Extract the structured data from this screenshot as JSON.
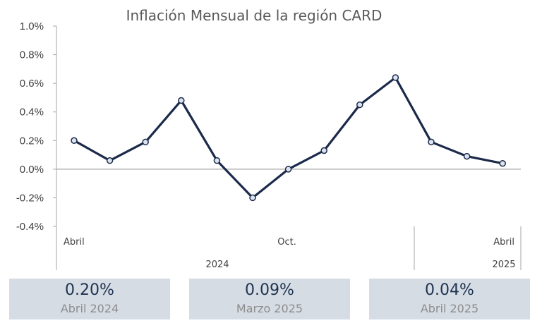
{
  "chart_data": {
    "type": "line",
    "title": "Inflación Mensual de la región CARD",
    "y_unit": "%",
    "ylim": [
      -0.4,
      1.0
    ],
    "yticks": [
      1.0,
      0.8,
      0.6,
      0.4,
      0.2,
      0.0,
      -0.2,
      -0.4
    ],
    "ytick_labels": [
      "1.0%",
      "0.8%",
      "0.6%",
      "0.4%",
      "0.2%",
      "0.0%",
      "-0.2%",
      "-0.4%"
    ],
    "x": [
      "2024-04",
      "2024-05",
      "2024-06",
      "2024-07",
      "2024-08",
      "2024-09",
      "2024-10",
      "2024-11",
      "2024-12",
      "2025-01",
      "2025-02",
      "2025-03",
      "2025-04"
    ],
    "series": [
      {
        "values": [
          0.2,
          0.06,
          0.19,
          0.48,
          0.06,
          -0.2,
          0.0,
          0.13,
          0.45,
          0.64,
          0.19,
          0.09,
          0.04
        ]
      }
    ],
    "x_month_labels": [
      {
        "label": "Abril",
        "index": 0
      },
      {
        "label": "Oct.",
        "index": 6
      },
      {
        "label": "Abril",
        "index": 12
      }
    ],
    "x_year_labels": [
      {
        "label": "2024",
        "from": 0,
        "to": 8
      },
      {
        "label": "2025",
        "from": 9,
        "to": 12
      }
    ],
    "colors": {
      "line": "#1b2a4a",
      "marker_fill": "#dbe3ef",
      "zero_line": "#a6a6a6"
    },
    "grid": false,
    "legend": "none"
  },
  "cards": [
    {
      "value": "0.20%",
      "label": "Abril 2024"
    },
    {
      "value": "0.09%",
      "label": "Marzo 2025"
    },
    {
      "value": "0.04%",
      "label": "Abril 2025"
    }
  ]
}
